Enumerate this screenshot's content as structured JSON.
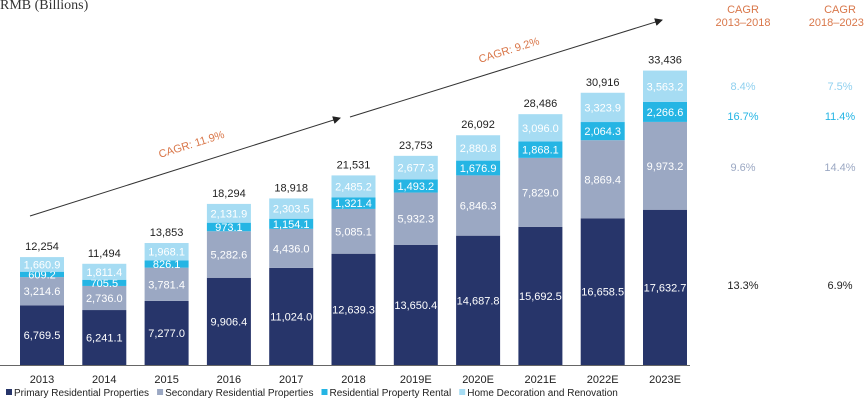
{
  "chart_data": {
    "type": "bar",
    "stacked": true,
    "unit_label": "RMB (Billions)",
    "categories": [
      "2013",
      "2014",
      "2015",
      "2016",
      "2017",
      "2018",
      "2019E",
      "2020E",
      "2021E",
      "2022E",
      "2023E"
    ],
    "totals": [
      "12,254",
      "11,494",
      "13,853",
      "18,294",
      "18,918",
      "21,531",
      "23,753",
      "26,092",
      "28,486",
      "30,916",
      "33,436"
    ],
    "series": [
      {
        "name": "Primary Residential Properties",
        "color": "#27356a",
        "values": [
          6769.5,
          6241.1,
          7277.0,
          9906.4,
          11024.0,
          12639.3,
          13650.4,
          14687.8,
          15692.5,
          16658.5,
          17632.7
        ]
      },
      {
        "name": "Secondary Residential Properties",
        "color": "#9ba8c3",
        "values": [
          3214.6,
          2736.0,
          3781.4,
          5282.6,
          4436.0,
          5085.1,
          5932.3,
          6846.3,
          7829.0,
          8869.4,
          9973.2
        ]
      },
      {
        "name": "Residential Property Rental",
        "color": "#25b5e4",
        "values": [
          609.2,
          705.5,
          826.1,
          973.1,
          1154.1,
          1321.4,
          1493.2,
          1676.9,
          1868.1,
          2064.3,
          2266.6
        ]
      },
      {
        "name": "Home Decoration and Renovation",
        "color": "#a6dcf3",
        "values": [
          1660.9,
          1811.4,
          1968.1,
          2131.9,
          2303.5,
          2485.2,
          2677.3,
          2880.8,
          3096.0,
          3323.9,
          3563.2
        ]
      }
    ],
    "ylim": [
      0,
      36000
    ],
    "grid": false,
    "legend": "bottom",
    "annotations": [
      "CAGR: 11.9%",
      "CAGR: 9.2%"
    ],
    "cagr_table": {
      "headers": [
        [
          "CAGR",
          "2013–2018"
        ],
        [
          "CAGR",
          "2018–2023E"
        ]
      ],
      "rows": [
        {
          "series": "Home Decoration and Renovation",
          "values": [
            "8.4%",
            "7.5%"
          ]
        },
        {
          "series": "Residential Property Rental",
          "values": [
            "16.7%",
            "11.4%"
          ]
        },
        {
          "series": "Secondary Residential Properties",
          "values": [
            "9.6%",
            "14.4%"
          ]
        },
        {
          "series": "Primary Residential Properties",
          "values": [
            "13.3%",
            "6.9%"
          ]
        }
      ]
    },
    "annotation_color": "#d9774a"
  }
}
